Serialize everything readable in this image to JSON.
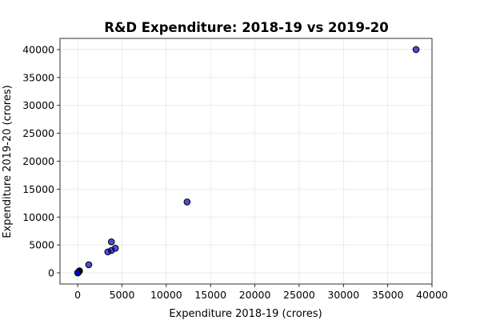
{
  "chart_data": {
    "type": "scatter",
    "title": "R&D Expenditure: 2018-19 vs 2019-20",
    "xlabel": "Expenditure 2018-19 (crores)",
    "ylabel": "Expenditure 2019-20 (crores)",
    "xlim": [
      -2000,
      40000
    ],
    "ylim": [
      -2000,
      42000
    ],
    "xticks": [
      0,
      5000,
      10000,
      15000,
      20000,
      25000,
      30000,
      35000,
      40000
    ],
    "yticks": [
      0,
      5000,
      10000,
      15000,
      20000,
      25000,
      30000,
      35000,
      40000
    ],
    "grid": true,
    "colors": {
      "marker_fill": "#0000cc",
      "marker_edge": "#000000"
    },
    "points": [
      {
        "x": 38200,
        "y": 40000
      },
      {
        "x": 12350,
        "y": 12700
      },
      {
        "x": 3800,
        "y": 5550
      },
      {
        "x": 4250,
        "y": 4400
      },
      {
        "x": 3800,
        "y": 4000
      },
      {
        "x": 3400,
        "y": 3750
      },
      {
        "x": 1250,
        "y": 1450
      },
      {
        "x": 200,
        "y": 350
      },
      {
        "x": 150,
        "y": 250
      },
      {
        "x": 100,
        "y": 150
      },
      {
        "x": 80,
        "y": 100
      },
      {
        "x": 60,
        "y": 80
      },
      {
        "x": 40,
        "y": 50
      },
      {
        "x": 30,
        "y": 40
      },
      {
        "x": 20,
        "y": 25
      },
      {
        "x": 10,
        "y": 15
      },
      {
        "x": 5,
        "y": 5
      },
      {
        "x": 0,
        "y": 0
      }
    ]
  }
}
